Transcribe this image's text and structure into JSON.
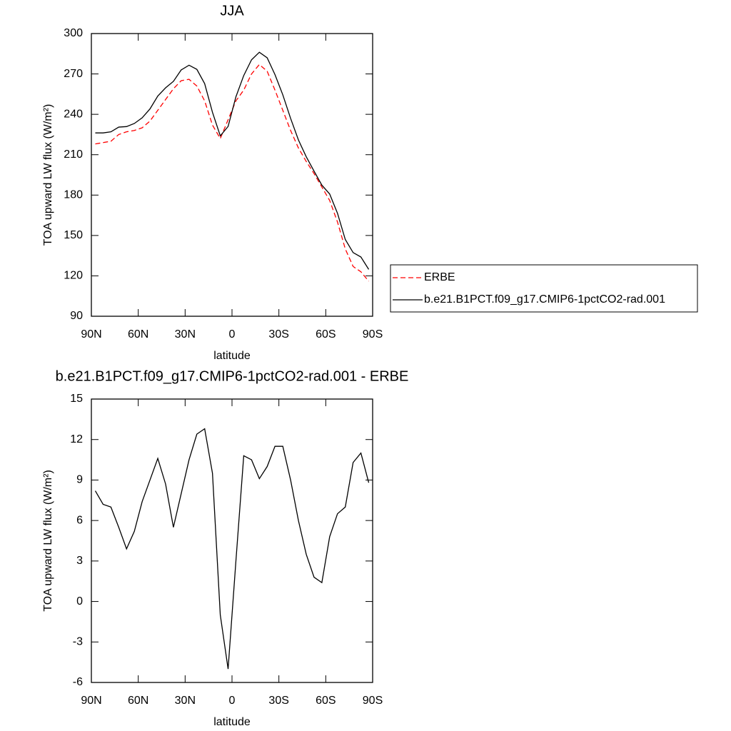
{
  "chart_data": [
    {
      "type": "line",
      "title": "JJA",
      "xlabel": "latitude",
      "ylabel": "TOA upward LW flux (W/m²)",
      "x": [
        87.5,
        82.5,
        77.5,
        72.5,
        67.5,
        62.5,
        57.5,
        52.5,
        47.5,
        42.5,
        37.5,
        32.5,
        27.5,
        22.5,
        17.5,
        12.5,
        7.5,
        2.5,
        -2.5,
        -7.5,
        -12.5,
        -17.5,
        -22.5,
        -27.5,
        -32.5,
        -37.5,
        -42.5,
        -47.5,
        -52.5,
        -57.5,
        -62.5,
        -67.5,
        -72.5,
        -77.5,
        -82.5,
        -87.5
      ],
      "series": [
        {
          "name": "ERBE",
          "color": "#ff0000",
          "dash": true,
          "values": [
            218,
            219,
            220,
            225,
            227,
            228,
            230,
            235,
            243,
            251,
            259,
            265,
            266,
            261,
            250,
            232,
            222,
            236,
            250,
            258,
            270,
            277,
            272,
            258,
            243,
            228,
            215,
            205,
            196,
            186,
            176,
            160,
            140,
            127,
            123,
            116
          ]
        },
        {
          "name": "b.e21.B1PCT.f09_g17.CMIP6-1pctCO2-rad.001",
          "color": "#000000",
          "dash": false,
          "values": [
            226.2,
            226.2,
            227,
            230.5,
            230.9,
            233.2,
            237.4,
            244,
            253.6,
            259.7,
            264.5,
            273,
            276.5,
            273.4,
            262.8,
            241.5,
            224,
            231,
            253,
            268.8,
            280.5,
            286.1,
            282,
            269.5,
            254.5,
            237,
            221,
            208.5,
            197.8,
            187.4,
            180.8,
            166.5,
            147,
            137.3,
            134,
            124.8
          ]
        }
      ],
      "xlim": [
        90,
        -90
      ],
      "xticks": [
        {
          "value": 90,
          "label": "90N"
        },
        {
          "value": 60,
          "label": "60N"
        },
        {
          "value": 30,
          "label": "30N"
        },
        0,
        {
          "value": -30,
          "label": "30S"
        },
        {
          "value": -60,
          "label": "60S"
        },
        {
          "value": -90,
          "label": "90S"
        }
      ],
      "ylim": [
        90,
        300
      ],
      "yticks": [
        90,
        120,
        150,
        180,
        210,
        240,
        270,
        300
      ],
      "legend": "right"
    },
    {
      "type": "line",
      "title": "b.e21.B1PCT.f09_g17.CMIP6-1pctCO2-rad.001 - ERBE",
      "xlabel": "latitude",
      "ylabel": "TOA upward LW flux (W/m²)",
      "x": [
        87.5,
        82.5,
        77.5,
        72.5,
        67.5,
        62.5,
        57.5,
        52.5,
        47.5,
        42.5,
        37.5,
        32.5,
        27.5,
        22.5,
        17.5,
        12.5,
        7.5,
        2.5,
        -2.5,
        -7.5,
        -12.5,
        -17.5,
        -22.5,
        -27.5,
        -32.5,
        -37.5,
        -42.5,
        -47.5,
        -52.5,
        -57.5,
        -62.5,
        -67.5,
        -72.5,
        -77.5,
        -82.5,
        -87.5
      ],
      "series": [
        {
          "color": "#000000",
          "dash": false,
          "values": [
            8.2,
            7.2,
            7.0,
            5.5,
            3.9,
            5.2,
            7.4,
            9.0,
            10.6,
            8.7,
            5.5,
            8.0,
            10.5,
            12.4,
            12.8,
            9.5,
            -1.0,
            -5.0,
            3.0,
            10.8,
            10.5,
            9.1,
            10.0,
            11.5,
            11.5,
            9.0,
            6.0,
            3.5,
            1.8,
            1.4,
            4.8,
            6.5,
            7.0,
            10.3,
            11.0,
            8.8
          ]
        }
      ],
      "xlim": [
        90,
        -90
      ],
      "xticks": [
        {
          "value": 90,
          "label": "90N"
        },
        {
          "value": 60,
          "label": "60N"
        },
        {
          "value": 30,
          "label": "30N"
        },
        0,
        {
          "value": -30,
          "label": "30S"
        },
        {
          "value": -60,
          "label": "60S"
        },
        {
          "value": -90,
          "label": "90S"
        }
      ],
      "ylim": [
        -6,
        15
      ],
      "yticks": [
        -6,
        -3,
        0,
        3,
        6,
        9,
        12,
        15
      ]
    }
  ]
}
